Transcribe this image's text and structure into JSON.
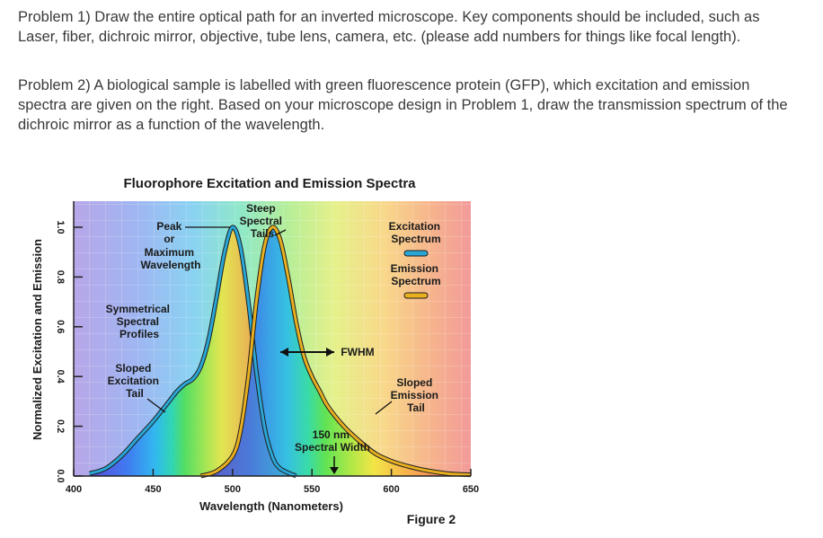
{
  "problems": {
    "p1": "Problem 1) Draw the entire optical path for an inverted microscope. Key components should be included, such as Laser, fiber, dichroic mirror, objective, tube lens, camera, etc. (please add numbers for things like focal length).",
    "p2": "Problem 2) A biological sample is labelled with green fluorescence protein (GFP), which excitation and emission spectra are given on the right. Based on your microscope design in Problem 1, draw the transmission spectrum of the dichroic mirror as a function of the wavelength."
  },
  "figure_caption": "Figure 2",
  "chart_data": {
    "type": "area",
    "title": "Fluorophore Excitation and Emission Spectra",
    "xlabel": "Wavelength (Nanometers)",
    "ylabel": "Normalized Excitation and Emission",
    "xlim": [
      400,
      650
    ],
    "ylim": [
      0.0,
      1.0
    ],
    "x_ticks": [
      "400",
      "450",
      "500",
      "550",
      "600",
      "650"
    ],
    "y_ticks": [
      "0.0",
      "0.2",
      "0.4",
      "0.6",
      "0.8",
      "1.0"
    ],
    "series": [
      {
        "name": "Excitation Spectrum",
        "color": "#2aa6d6",
        "x": [
          410,
          420,
          430,
          440,
          450,
          460,
          465,
          470,
          475,
          480,
          485,
          490,
          495,
          500,
          505,
          510,
          515,
          520,
          525,
          530,
          540
        ],
        "values": [
          0.01,
          0.03,
          0.08,
          0.15,
          0.22,
          0.3,
          0.34,
          0.37,
          0.39,
          0.44,
          0.55,
          0.72,
          0.9,
          1.0,
          0.92,
          0.7,
          0.42,
          0.2,
          0.08,
          0.03,
          0.0
        ]
      },
      {
        "name": "Emission Spectrum",
        "color": "#e8b020",
        "x": [
          480,
          490,
          500,
          505,
          510,
          515,
          520,
          525,
          530,
          535,
          540,
          545,
          550,
          555,
          560,
          570,
          580,
          590,
          600,
          610,
          620,
          635,
          650
        ],
        "values": [
          0.0,
          0.02,
          0.08,
          0.18,
          0.4,
          0.7,
          0.92,
          1.0,
          0.95,
          0.8,
          0.62,
          0.48,
          0.4,
          0.34,
          0.28,
          0.2,
          0.14,
          0.09,
          0.06,
          0.04,
          0.025,
          0.01,
          0.005
        ]
      }
    ],
    "annotations": {
      "peak": [
        "Peak",
        "or",
        "Maximum",
        "Wavelength"
      ],
      "steep": [
        "Steep",
        "Spectral",
        "Tails"
      ],
      "symmetrical": [
        "Symmetrical",
        "Spectral",
        "Profiles"
      ],
      "sloped_excitation": [
        "Sloped",
        "Excitation",
        "Tail"
      ],
      "sloped_emission": [
        "Sloped",
        "Emission",
        "Tail"
      ],
      "fwhm": "FWHM",
      "spectral_width": [
        "150 nm",
        "Spectral Width"
      ],
      "legend_excitation": [
        "Excitation",
        "Spectrum"
      ],
      "legend_emission": [
        "Emission",
        "Spectrum"
      ]
    }
  }
}
